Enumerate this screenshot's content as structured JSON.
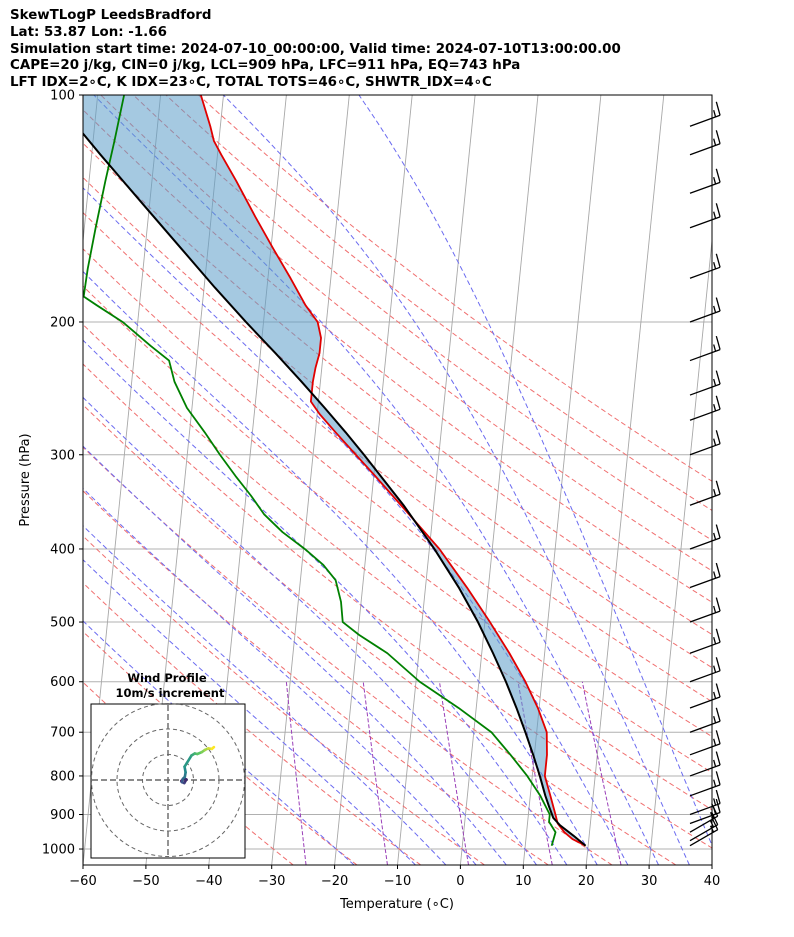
{
  "header": {
    "line1": "SkewTLogP LeedsBradford",
    "line2": "Lat: 53.87   Lon: -1.66",
    "line3": "Simulation start time: 2024-07-10_00:00:00, Valid time: 2024-07-10T13:00:00.00",
    "line4": "CAPE=20 j/kg, CIN=0 j/kg, LCL=909 hPa, LFC=911 hPa, EQ=743 hPa",
    "line5": "LFT IDX=2∘C, K IDX=23∘C, TOTAL TOTS=46∘C, SHWTR_IDX=4∘C"
  },
  "chart_data": {
    "type": "skewt",
    "xlabel": "Temperature (∘C)",
    "ylabel": "Pressure (hPa)",
    "xlim": [
      -60,
      40
    ],
    "ylim": [
      1050,
      100
    ],
    "x_ticks": [
      -60,
      -50,
      -40,
      -30,
      -20,
      -10,
      0,
      10,
      20,
      30,
      40
    ],
    "x_tick_labels": [
      "−60",
      "−50",
      "−40",
      "−30",
      "−20",
      "−10",
      "0",
      "10",
      "20",
      "30",
      "40"
    ],
    "y_ticks": [
      1000,
      900,
      800,
      700,
      600,
      500,
      400,
      300,
      200,
      100
    ],
    "y_tick_labels": [
      "1000",
      "900",
      "800",
      "700",
      "600",
      "500",
      "400",
      "300",
      "200",
      "100"
    ],
    "series": [
      {
        "name": "temperature",
        "color": "#e00000",
        "points": [
          [
            990,
            19.6
          ],
          [
            970,
            17.4
          ],
          [
            950,
            16.0
          ],
          [
            925,
            14.8
          ],
          [
            900,
            14.3
          ],
          [
            850,
            13.2
          ],
          [
            800,
            12.0
          ],
          [
            750,
            12.0
          ],
          [
            700,
            11.6
          ],
          [
            650,
            9.8
          ],
          [
            600,
            7.4
          ],
          [
            550,
            4.4
          ],
          [
            500,
            0.8
          ],
          [
            450,
            -3.4
          ],
          [
            400,
            -8.4
          ],
          [
            350,
            -15.2
          ],
          [
            320,
            -19.8
          ],
          [
            300,
            -23.2
          ],
          [
            280,
            -26.8
          ],
          [
            265,
            -29.6
          ],
          [
            255,
            -31.2
          ],
          [
            240,
            -31.2
          ],
          [
            230,
            -31.0
          ],
          [
            220,
            -30.6
          ],
          [
            210,
            -30.6
          ],
          [
            200,
            -31.4
          ],
          [
            190,
            -33.6
          ],
          [
            175,
            -36.4
          ],
          [
            160,
            -39.6
          ],
          [
            145,
            -43.0
          ],
          [
            130,
            -46.6
          ],
          [
            120,
            -49.4
          ],
          [
            115,
            -50.8
          ],
          [
            110,
            -51.6
          ],
          [
            100,
            -53.6
          ]
        ]
      },
      {
        "name": "dewpoint",
        "color": "#008000",
        "points": [
          [
            990,
            14.2
          ],
          [
            970,
            14.4
          ],
          [
            950,
            14.6
          ],
          [
            920,
            13.4
          ],
          [
            900,
            13.4
          ],
          [
            850,
            11.6
          ],
          [
            800,
            9.2
          ],
          [
            750,
            6.2
          ],
          [
            700,
            2.8
          ],
          [
            650,
            -2.8
          ],
          [
            600,
            -9.4
          ],
          [
            550,
            -15.0
          ],
          [
            520,
            -19.8
          ],
          [
            500,
            -22.6
          ],
          [
            470,
            -23.2
          ],
          [
            440,
            -24.4
          ],
          [
            420,
            -26.6
          ],
          [
            400,
            -29.8
          ],
          [
            380,
            -33.6
          ],
          [
            360,
            -36.8
          ],
          [
            340,
            -39.2
          ],
          [
            320,
            -42.0
          ],
          [
            300,
            -44.8
          ],
          [
            280,
            -47.6
          ],
          [
            260,
            -50.8
          ],
          [
            240,
            -53.2
          ],
          [
            225,
            -54.4
          ],
          [
            215,
            -57.6
          ],
          [
            200,
            -62.4
          ],
          [
            190,
            -66.8
          ],
          [
            185,
            -69.0
          ],
          [
            170,
            -68.8
          ],
          [
            150,
            -68.2
          ],
          [
            130,
            -67.4
          ],
          [
            115,
            -66.6
          ],
          [
            100,
            -65.8
          ]
        ]
      },
      {
        "name": "parcel",
        "color": "#000000",
        "points": [
          [
            990,
            19.6
          ],
          [
            960,
            17.5
          ],
          [
            930,
            15.2
          ],
          [
            909,
            14.0
          ],
          [
            880,
            13.2
          ],
          [
            850,
            12.4
          ],
          [
            800,
            11.2
          ],
          [
            750,
            9.8
          ],
          [
            700,
            8.2
          ],
          [
            650,
            6.4
          ],
          [
            600,
            4.3
          ],
          [
            550,
            1.8
          ],
          [
            500,
            -1.1
          ],
          [
            450,
            -4.7
          ],
          [
            400,
            -9.2
          ],
          [
            350,
            -14.8
          ],
          [
            300,
            -21.9
          ],
          [
            280,
            -25.2
          ],
          [
            260,
            -28.9
          ],
          [
            240,
            -33.0
          ],
          [
            220,
            -37.6
          ],
          [
            200,
            -42.8
          ],
          [
            180,
            -48.3
          ],
          [
            160,
            -54.2
          ],
          [
            140,
            -60.9
          ],
          [
            120,
            -68.6
          ],
          [
            110,
            -72.8
          ],
          [
            100,
            -77.3
          ]
        ]
      }
    ],
    "cape_fill": {
      "name": "CAPE area",
      "color": "#5b9cc9"
    },
    "isotherms": [
      -150,
      -140,
      -130,
      -120,
      -110,
      -100,
      -90,
      -80,
      -70,
      -60,
      -50,
      -40,
      -30,
      -20,
      -10,
      0,
      10,
      20,
      30,
      40
    ],
    "dry_adiabats_theta_c": [
      -30,
      -20,
      -10,
      0,
      10,
      20,
      30,
      40,
      50,
      60,
      70,
      80,
      90,
      100,
      110,
      120,
      130,
      140,
      150
    ],
    "moist_adiabats_c": [
      -20,
      -10,
      -5,
      0,
      5,
      10,
      15,
      20,
      25,
      30,
      35,
      40
    ],
    "mixing_ratio_lines_gkg": [
      0.5,
      1.5,
      4,
      10,
      20
    ],
    "barbs": [
      {
        "p": 990,
        "speed": 10,
        "dir": 240
      },
      {
        "p": 975,
        "speed": 10,
        "dir": 240
      },
      {
        "p": 950,
        "speed": 10,
        "dir": 240
      },
      {
        "p": 925,
        "speed": 10,
        "dir": 250
      },
      {
        "p": 900,
        "speed": 10,
        "dir": 250
      },
      {
        "p": 850,
        "speed": 10,
        "dir": 250
      },
      {
        "p": 800,
        "speed": 10,
        "dir": 250
      },
      {
        "p": 750,
        "speed": 10,
        "dir": 250
      },
      {
        "p": 700,
        "speed": 10,
        "dir": 250
      },
      {
        "p": 650,
        "speed": 10,
        "dir": 250
      },
      {
        "p": 600,
        "speed": 10,
        "dir": 250
      },
      {
        "p": 550,
        "speed": 10,
        "dir": 250
      },
      {
        "p": 500,
        "speed": 10,
        "dir": 250
      },
      {
        "p": 450,
        "speed": 10,
        "dir": 250
      },
      {
        "p": 400,
        "speed": 10,
        "dir": 250
      },
      {
        "p": 350,
        "speed": 10,
        "dir": 250
      },
      {
        "p": 300,
        "speed": 10,
        "dir": 250
      },
      {
        "p": 270,
        "speed": 10,
        "dir": 250
      },
      {
        "p": 250,
        "speed": 10,
        "dir": 250
      },
      {
        "p": 225,
        "speed": 10,
        "dir": 250
      },
      {
        "p": 200,
        "speed": 10,
        "dir": 250
      },
      {
        "p": 175,
        "speed": 10,
        "dir": 250
      },
      {
        "p": 150,
        "speed": 10,
        "dir": 250
      },
      {
        "p": 135,
        "speed": 10,
        "dir": 250
      },
      {
        "p": 120,
        "speed": 10,
        "dir": 250
      },
      {
        "p": 110,
        "speed": 10,
        "dir": 250
      }
    ],
    "hodograph": {
      "title": "Wind Profile",
      "subtitle": "10m/s increment",
      "ring_increment_ms": 10,
      "ring_count": 3,
      "points": [
        [
          5.2,
          -0.4
        ],
        [
          6.2,
          0.6
        ],
        [
          7.2,
          0.2
        ],
        [
          6.4,
          -1.2
        ],
        [
          5.4,
          -0.8
        ],
        [
          5.8,
          0.4
        ],
        [
          6.6,
          1.2
        ],
        [
          6.9,
          3.0
        ],
        [
          6.5,
          5.2
        ],
        [
          9.2,
          9.6
        ],
        [
          10.5,
          10.4
        ],
        [
          11.5,
          10.2
        ],
        [
          13.2,
          10.9
        ],
        [
          14.5,
          11.8
        ],
        [
          15.8,
          12.4
        ],
        [
          17.2,
          12.2
        ],
        [
          18.0,
          12.9
        ]
      ]
    }
  }
}
